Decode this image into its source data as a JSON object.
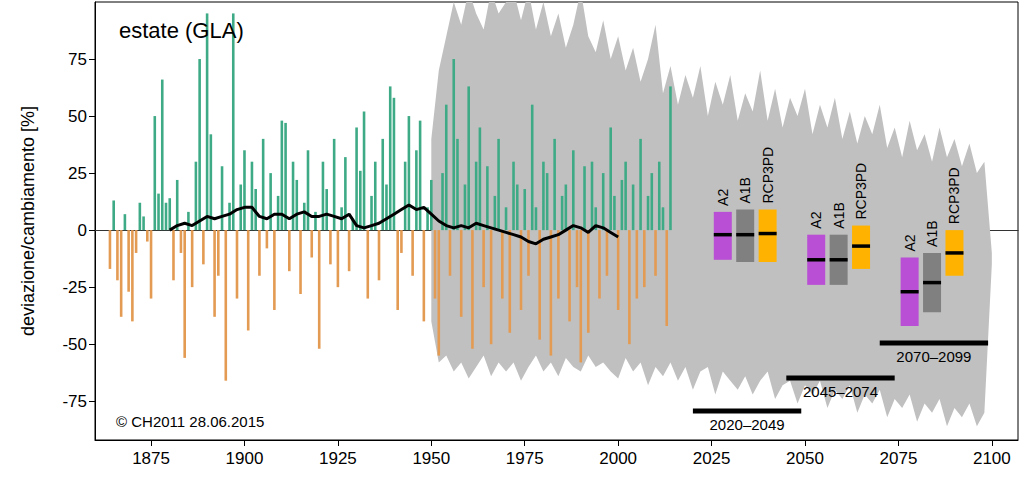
{
  "chart_data": {
    "type": "bar",
    "title": "estate (GLA)",
    "y_label": "deviazione/cambiamento [%]",
    "annotation": "© CH2011 28.06.2015",
    "grid": false,
    "xlim": [
      1860,
      2107
    ],
    "xticks": [
      1875,
      1900,
      1925,
      1950,
      1975,
      2000,
      2025,
      2050,
      2075,
      2100
    ],
    "ylim": [
      -92,
      100
    ],
    "yticks": [
      -75,
      -50,
      -25,
      0,
      25,
      50,
      75
    ],
    "x": [
      1864,
      1865,
      1866,
      1867,
      1868,
      1869,
      1870,
      1871,
      1872,
      1873,
      1874,
      1875,
      1876,
      1877,
      1878,
      1879,
      1880,
      1881,
      1882,
      1883,
      1884,
      1885,
      1886,
      1887,
      1888,
      1889,
      1890,
      1891,
      1892,
      1893,
      1894,
      1895,
      1896,
      1897,
      1898,
      1899,
      1900,
      1901,
      1902,
      1903,
      1904,
      1905,
      1906,
      1907,
      1908,
      1909,
      1910,
      1911,
      1912,
      1913,
      1914,
      1915,
      1916,
      1917,
      1918,
      1919,
      1920,
      1921,
      1922,
      1923,
      1924,
      1925,
      1926,
      1927,
      1928,
      1929,
      1930,
      1931,
      1932,
      1933,
      1934,
      1935,
      1936,
      1937,
      1938,
      1939,
      1940,
      1941,
      1942,
      1943,
      1944,
      1945,
      1946,
      1947,
      1948,
      1949,
      1950,
      1951,
      1952,
      1953,
      1954,
      1955,
      1956,
      1957,
      1958,
      1959,
      1960,
      1961,
      1962,
      1963,
      1964,
      1965,
      1966,
      1967,
      1968,
      1969,
      1970,
      1971,
      1972,
      1973,
      1974,
      1975,
      1976,
      1977,
      1978,
      1979,
      1980,
      1981,
      1982,
      1983,
      1984,
      1985,
      1986,
      1987,
      1988,
      1989,
      1990,
      1991,
      1992,
      1993,
      1994,
      1995,
      1996,
      1997,
      1998,
      1999,
      2000,
      2001,
      2002,
      2003,
      2004,
      2005,
      2006,
      2007,
      2008,
      2009,
      2010,
      2011,
      2012,
      2013,
      2014
    ],
    "values": [
      -17,
      13,
      -22,
      -38,
      7,
      -27,
      -40,
      -10,
      12,
      6,
      -5,
      -30,
      50,
      16,
      66,
      12,
      14,
      -22,
      22,
      -10,
      -56,
      8,
      -25,
      30,
      75,
      -15,
      95,
      42,
      -38,
      -20,
      28,
      -66,
      12,
      95,
      -30,
      20,
      35,
      -44,
      30,
      18,
      -20,
      40,
      -8,
      25,
      -35,
      15,
      48,
      47,
      -18,
      30,
      22,
      -28,
      12,
      35,
      -12,
      8,
      -52,
      30,
      18,
      -15,
      40,
      -25,
      10,
      32,
      -18,
      5,
      45,
      26,
      52,
      -30,
      15,
      30,
      -22,
      40,
      20,
      63,
      58,
      -35,
      -10,
      30,
      50,
      -20,
      35,
      48,
      -40,
      10,
      22,
      -30,
      -55,
      25,
      55,
      -20,
      75,
      40,
      -38,
      20,
      63,
      -52,
      30,
      45,
      -25,
      28,
      -50,
      15,
      40,
      -30,
      10,
      -45,
      30,
      20,
      -35,
      18,
      -20,
      55,
      10,
      -48,
      30,
      25,
      -55,
      40,
      -30,
      15,
      20,
      -40,
      35,
      -25,
      -58,
      28,
      -45,
      30,
      10,
      -30,
      25,
      -20,
      45,
      15,
      -35,
      22,
      30,
      -50,
      20,
      -30,
      40,
      -25,
      15,
      25,
      -20,
      30,
      10,
      -42,
      63
    ],
    "colors": [
      "#e39a52",
      "#3faa86",
      "#e39a52",
      "#e39a52",
      "#3faa86",
      "#e39a52",
      "#e39a52",
      "#e39a52",
      "#3faa86",
      "#3faa86",
      "#e39a52",
      "#e39a52",
      "#3faa86",
      "#3faa86",
      "#3faa86",
      "#3faa86",
      "#3faa86",
      "#e39a52",
      "#3faa86",
      "#e39a52",
      "#e39a52",
      "#3faa86",
      "#e39a52",
      "#3faa86",
      "#3faa86",
      "#e39a52",
      "#3faa86",
      "#3faa86",
      "#e39a52",
      "#e39a52",
      "#3faa86",
      "#e39a52",
      "#3faa86",
      "#3faa86",
      "#e39a52",
      "#3faa86",
      "#3faa86",
      "#e39a52",
      "#3faa86",
      "#3faa86",
      "#e39a52",
      "#3faa86",
      "#e39a52",
      "#3faa86",
      "#e39a52",
      "#3faa86",
      "#3faa86",
      "#3faa86",
      "#e39a52",
      "#3faa86",
      "#3faa86",
      "#e39a52",
      "#3faa86",
      "#3faa86",
      "#e39a52",
      "#3faa86",
      "#e39a52",
      "#3faa86",
      "#3faa86",
      "#e39a52",
      "#3faa86",
      "#e39a52",
      "#3faa86",
      "#3faa86",
      "#e39a52",
      "#3faa86",
      "#3faa86",
      "#3faa86",
      "#3faa86",
      "#e39a52",
      "#3faa86",
      "#3faa86",
      "#e39a52",
      "#3faa86",
      "#3faa86",
      "#3faa86",
      "#3faa86",
      "#e39a52",
      "#e39a52",
      "#3faa86",
      "#3faa86",
      "#e39a52",
      "#3faa86",
      "#3faa86",
      "#e39a52",
      "#3faa86",
      "#3faa86",
      "#e39a52",
      "#e39a52",
      "#3faa86",
      "#3faa86",
      "#e39a52",
      "#3faa86",
      "#3faa86",
      "#e39a52",
      "#3faa86",
      "#3faa86",
      "#e39a52",
      "#3faa86",
      "#3faa86",
      "#e39a52",
      "#3faa86",
      "#e39a52",
      "#3faa86",
      "#3faa86",
      "#e39a52",
      "#3faa86",
      "#e39a52",
      "#3faa86",
      "#3faa86",
      "#e39a52",
      "#3faa86",
      "#e39a52",
      "#3faa86",
      "#3faa86",
      "#e39a52",
      "#3faa86",
      "#3faa86",
      "#e39a52",
      "#3faa86",
      "#e39a52",
      "#3faa86",
      "#3faa86",
      "#e39a52",
      "#3faa86",
      "#e39a52",
      "#e39a52",
      "#3faa86",
      "#e39a52",
      "#3faa86",
      "#3faa86",
      "#e39a52",
      "#3faa86",
      "#e39a52",
      "#3faa86",
      "#3faa86",
      "#e39a52",
      "#3faa86",
      "#3faa86",
      "#e39a52",
      "#3faa86",
      "#e39a52",
      "#3faa86",
      "#e39a52",
      "#3faa86",
      "#3faa86",
      "#e39a52",
      "#3faa86",
      "#3faa86",
      "#e39a52",
      "#3faa86"
    ],
    "series": [
      {
        "type": "line",
        "color": "#000000",
        "x": [
          1880,
          1882,
          1884,
          1886,
          1888,
          1890,
          1892,
          1894,
          1896,
          1898,
          1900,
          1902,
          1904,
          1906,
          1908,
          1910,
          1912,
          1914,
          1916,
          1918,
          1920,
          1922,
          1924,
          1926,
          1928,
          1930,
          1932,
          1934,
          1936,
          1938,
          1940,
          1942,
          1944,
          1946,
          1948,
          1950,
          1952,
          1954,
          1956,
          1958,
          1960,
          1962,
          1964,
          1966,
          1968,
          1970,
          1972,
          1974,
          1976,
          1978,
          1980,
          1982,
          1984,
          1986,
          1988,
          1990,
          1992,
          1994,
          1996,
          1998,
          2000
        ],
        "values": [
          0,
          2,
          3,
          2,
          4,
          6,
          5,
          6,
          7,
          9,
          10,
          10,
          6,
          5,
          7,
          7,
          5,
          7,
          8,
          6,
          6,
          7,
          6,
          5,
          7,
          2,
          1,
          2,
          3,
          5,
          7,
          9,
          11,
          9,
          10,
          7,
          4,
          2,
          1,
          2,
          1,
          3,
          2,
          1,
          0,
          -1,
          -2,
          -3,
          -5,
          -6,
          -4,
          -3,
          -2,
          0,
          2,
          1,
          -1,
          2,
          1,
          -1,
          -3
        ]
      },
      {
        "type": "area",
        "color": "#c0c0c0",
        "x": [
          1950,
          1952,
          1954,
          1956,
          1958,
          1960,
          1962,
          1964,
          1966,
          1968,
          1970,
          1972,
          1974,
          1976,
          1978,
          1980,
          1982,
          1984,
          1986,
          1988,
          1990,
          1992,
          1994,
          1996,
          1998,
          2000,
          2002,
          2004,
          2006,
          2008,
          2010,
          2012,
          2014,
          2016,
          2018,
          2020,
          2022,
          2024,
          2026,
          2028,
          2030,
          2032,
          2034,
          2036,
          2038,
          2040,
          2042,
          2044,
          2046,
          2048,
          2050,
          2052,
          2054,
          2056,
          2058,
          2060,
          2062,
          2064,
          2066,
          2068,
          2070,
          2072,
          2074,
          2076,
          2078,
          2080,
          2082,
          2084,
          2086,
          2088,
          2090,
          2092,
          2094,
          2096,
          2098,
          2100
        ],
        "upper": [
          40,
          70,
          85,
          100,
          90,
          105,
          95,
          88,
          105,
          95,
          100,
          105,
          92,
          105,
          88,
          100,
          85,
          95,
          80,
          90,
          105,
          85,
          78,
          92,
          75,
          85,
          70,
          80,
          65,
          75,
          90,
          60,
          72,
          55,
          68,
          58,
          72,
          50,
          65,
          55,
          68,
          48,
          60,
          52,
          70,
          48,
          62,
          45,
          58,
          50,
          62,
          42,
          55,
          45,
          58,
          40,
          52,
          38,
          50,
          42,
          55,
          36,
          45,
          32,
          48,
          35,
          42,
          30,
          45,
          32,
          40,
          28,
          38,
          25,
          30,
          -10
        ],
        "lower": [
          -40,
          -58,
          -55,
          -62,
          -58,
          -65,
          -60,
          -55,
          -64,
          -58,
          -62,
          -58,
          -66,
          -60,
          -55,
          -62,
          -58,
          -64,
          -56,
          -60,
          -62,
          -55,
          -60,
          -58,
          -62,
          -65,
          -56,
          -62,
          -58,
          -68,
          -60,
          -64,
          -58,
          -66,
          -60,
          -70,
          -62,
          -60,
          -72,
          -62,
          -66,
          -70,
          -64,
          -72,
          -66,
          -62,
          -74,
          -68,
          -66,
          -76,
          -68,
          -72,
          -66,
          -78,
          -70,
          -74,
          -68,
          -80,
          -72,
          -76,
          -70,
          -82,
          -74,
          -78,
          -72,
          -84,
          -76,
          -80,
          -74,
          -86,
          -78,
          -82,
          -76,
          -86,
          -80,
          -15
        ]
      }
    ],
    "periods": [
      {
        "label": "2020–2049",
        "start": 2020,
        "end": 2049,
        "scenarios": [
          {
            "name": "A2",
            "color": "#b84fd4",
            "low": -13,
            "median": -2,
            "high": 8
          },
          {
            "name": "A1B",
            "color": "#808080",
            "low": -14,
            "median": -2,
            "high": 9
          },
          {
            "name": "RCP3PD",
            "color": "#ffb300",
            "low": -14,
            "median": -1.5,
            "high": 9
          }
        ]
      },
      {
        "label": "2045–2074",
        "start": 2045,
        "end": 2074,
        "scenarios": [
          {
            "name": "A2",
            "color": "#b84fd4",
            "low": -24,
            "median": -13,
            "high": -2
          },
          {
            "name": "A1B",
            "color": "#808080",
            "low": -24,
            "median": -13,
            "high": -2
          },
          {
            "name": "RCP3PD",
            "color": "#ffb300",
            "low": -17,
            "median": -7,
            "high": 2
          }
        ]
      },
      {
        "label": "2070–2099",
        "start": 2070,
        "end": 2099,
        "scenarios": [
          {
            "name": "A2",
            "color": "#b84fd4",
            "low": -42,
            "median": -27,
            "high": -12
          },
          {
            "name": "A1B",
            "color": "#808080",
            "low": -36,
            "median": -23,
            "high": -10
          },
          {
            "name": "RCP3PD",
            "color": "#ffb300",
            "low": -20,
            "median": -10,
            "high": 0
          }
        ]
      }
    ]
  }
}
